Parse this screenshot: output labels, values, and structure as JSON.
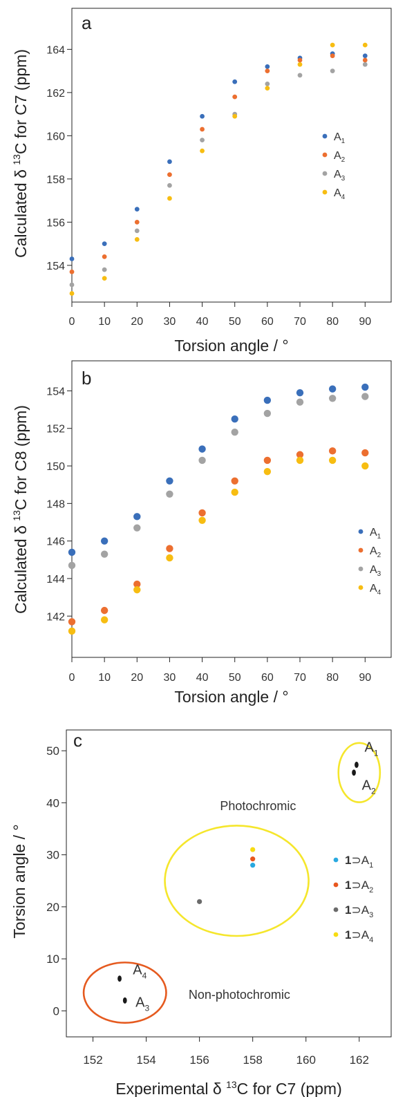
{
  "colors": {
    "A1": "#3a6fba",
    "A2": "#ec6f30",
    "A3": "#a3a3a3",
    "A4": "#f7bd12",
    "c_blue": "#29a9e0",
    "c_orange": "#e8571f",
    "c_gray": "#6b6b6b",
    "c_yellow": "#f7dc12",
    "c_black": "#1a1a1a",
    "ellipse_yellow": "#f5e62c",
    "ellipse_orange": "#e55a1f"
  },
  "chart_data": [
    {
      "type": "scatter",
      "panel_label": "a",
      "xlabel": "Torsion angle / °",
      "ylabel": "Calculated δ ¹³C for C7 (ppm)",
      "ylabel_parts": {
        "pre": "Calculated δ ",
        "sup": "13",
        "post": "C for C7 (ppm)"
      },
      "xlim": [
        0,
        98
      ],
      "ylim": [
        152.3,
        165.9
      ],
      "xticks": [
        0,
        10,
        20,
        30,
        40,
        50,
        60,
        70,
        80,
        90
      ],
      "yticks": [
        154,
        156,
        158,
        160,
        162,
        164
      ],
      "legend_position": "right",
      "legend": [
        {
          "base": "A",
          "sub": "1",
          "color_key": "A1"
        },
        {
          "base": "A",
          "sub": "2",
          "color_key": "A2"
        },
        {
          "base": "A",
          "sub": "3",
          "color_key": "A3"
        },
        {
          "base": "A",
          "sub": "4",
          "color_key": "A4"
        }
      ],
      "series": [
        {
          "color_key": "A1",
          "x": [
            0,
            10,
            20,
            30,
            40,
            50,
            60,
            70,
            80,
            90
          ],
          "y": [
            154.3,
            155.0,
            156.6,
            158.8,
            160.9,
            162.5,
            163.2,
            163.6,
            163.8,
            163.7
          ]
        },
        {
          "color_key": "A2",
          "x": [
            0,
            10,
            20,
            30,
            40,
            50,
            60,
            70,
            80,
            90
          ],
          "y": [
            153.7,
            154.4,
            156.0,
            158.2,
            160.3,
            161.8,
            163.0,
            163.5,
            163.7,
            163.5
          ]
        },
        {
          "color_key": "A3",
          "x": [
            0,
            10,
            20,
            30,
            40,
            50,
            60,
            70,
            80,
            90
          ],
          "y": [
            153.1,
            153.8,
            155.6,
            157.7,
            159.8,
            161.0,
            162.4,
            162.8,
            163.0,
            163.3
          ]
        },
        {
          "color_key": "A4",
          "x": [
            0,
            10,
            20,
            30,
            40,
            50,
            60,
            70,
            80,
            90
          ],
          "y": [
            152.7,
            153.4,
            155.2,
            157.1,
            159.3,
            160.9,
            162.2,
            163.3,
            164.2,
            164.2
          ]
        }
      ]
    },
    {
      "type": "scatter",
      "panel_label": "b",
      "xlabel": "Torsion angle / °",
      "ylabel": "Calculated δ ¹³C for C8 (ppm)",
      "ylabel_parts": {
        "pre": "Calculated δ ",
        "sup": "13",
        "post": "C for C8 (ppm)"
      },
      "xlim": [
        0,
        98
      ],
      "ylim": [
        139.8,
        155.6
      ],
      "xticks": [
        0,
        10,
        20,
        30,
        40,
        50,
        60,
        70,
        80,
        90
      ],
      "yticks": [
        142,
        144,
        146,
        148,
        150,
        152,
        154
      ],
      "legend_position": "right",
      "legend": [
        {
          "base": "A",
          "sub": "1",
          "color_key": "A1"
        },
        {
          "base": "A",
          "sub": "2",
          "color_key": "A2"
        },
        {
          "base": "A",
          "sub": "3",
          "color_key": "A3"
        },
        {
          "base": "A",
          "sub": "4",
          "color_key": "A4"
        }
      ],
      "series": [
        {
          "color_key": "A1",
          "x": [
            0,
            10,
            20,
            30,
            40,
            50,
            60,
            70,
            80,
            90
          ],
          "y": [
            145.4,
            146.0,
            147.3,
            149.2,
            150.9,
            152.5,
            153.5,
            153.9,
            154.1,
            154.2
          ]
        },
        {
          "color_key": "A2",
          "x": [
            0,
            10,
            20,
            30,
            40,
            50,
            60,
            70,
            80,
            90
          ],
          "y": [
            141.7,
            142.3,
            143.7,
            145.6,
            147.5,
            149.2,
            150.3,
            150.6,
            150.8,
            150.7
          ]
        },
        {
          "color_key": "A3",
          "x": [
            0,
            10,
            20,
            30,
            40,
            50,
            60,
            70,
            80,
            90
          ],
          "y": [
            144.7,
            145.3,
            146.7,
            148.5,
            150.3,
            151.8,
            152.8,
            153.4,
            153.6,
            153.7
          ]
        },
        {
          "color_key": "A4",
          "x": [
            0,
            10,
            20,
            30,
            40,
            50,
            60,
            70,
            80,
            90
          ],
          "y": [
            141.2,
            141.8,
            143.4,
            145.1,
            147.1,
            148.6,
            149.7,
            150.3,
            150.3,
            150.0
          ]
        }
      ]
    },
    {
      "type": "scatter",
      "panel_label": "c",
      "xlabel": "Experimental δ ¹³C for C7 (ppm)",
      "xlabel_parts": {
        "pre": "Experimental δ ",
        "sup": "13",
        "post": "C for C7 (ppm)"
      },
      "ylabel": "Torsion angle / °",
      "xlim": [
        151.0,
        163.2
      ],
      "ylim": [
        -5,
        54
      ],
      "xticks": [
        152,
        154,
        156,
        158,
        160,
        162
      ],
      "yticks": [
        0,
        10,
        20,
        30,
        40,
        50
      ],
      "legend_position": "right",
      "legend": [
        {
          "bold": "1",
          "base": "⊃A",
          "sub": "1",
          "color_key": "c_blue"
        },
        {
          "bold": "1",
          "base": "⊃A",
          "sub": "2",
          "color_key": "c_orange"
        },
        {
          "bold": "1",
          "base": "⊃A",
          "sub": "3",
          "color_key": "c_gray"
        },
        {
          "bold": "1",
          "base": "⊃A",
          "sub": "4",
          "color_key": "c_yellow"
        }
      ],
      "series": [
        {
          "color_key": "c_yellow",
          "x": [
            158.0
          ],
          "y": [
            31.0
          ]
        },
        {
          "color_key": "c_orange",
          "x": [
            158.0
          ],
          "y": [
            29.2
          ]
        },
        {
          "color_key": "c_blue",
          "x": [
            158.0
          ],
          "y": [
            28.0
          ]
        },
        {
          "color_key": "c_gray",
          "x": [
            156.0
          ],
          "y": [
            21.0
          ]
        },
        {
          "color_key": "c_black",
          "x": [
            161.9,
            161.8,
            153.0,
            153.2
          ],
          "y": [
            47.3,
            45.8,
            6.2,
            2.0
          ]
        }
      ],
      "point_labels": [
        {
          "base": "A",
          "sub": "1",
          "x": 162.2,
          "y": 49.8
        },
        {
          "base": "A",
          "sub": "2",
          "x": 162.1,
          "y": 42.5
        },
        {
          "base": "A",
          "sub": "4",
          "x": 153.5,
          "y": 7.0
        },
        {
          "base": "A",
          "sub": "3",
          "x": 153.6,
          "y": 0.8
        }
      ],
      "regions": [
        {
          "label": "Photochromic",
          "cx": 157.4,
          "cy": 25.0,
          "rx": 2.7,
          "ry": 10.6,
          "color_key": "ellipse_yellow",
          "label_x": 158.2,
          "label_y": 38.6
        },
        {
          "label": "Non-photochromic",
          "cx": 153.2,
          "cy": 3.5,
          "rx": 1.55,
          "ry": 5.8,
          "color_key": "ellipse_orange",
          "label_x": 157.5,
          "label_y": 2.3
        },
        {
          "label": "",
          "cx": 162.0,
          "cy": 45.8,
          "rx": 0.78,
          "ry": 5.7,
          "color_key": "ellipse_yellow"
        }
      ]
    }
  ]
}
